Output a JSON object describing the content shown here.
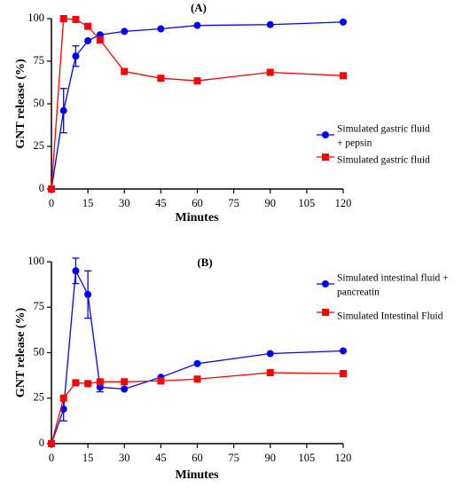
{
  "chart_data": [
    {
      "type": "line",
      "panel_label": "(A)",
      "xlabel": "Minutes",
      "ylabel": "GNT release (%)",
      "xlim": [
        0,
        120
      ],
      "ylim": [
        0,
        100
      ],
      "xticks": [
        0,
        15,
        30,
        45,
        60,
        75,
        90,
        105,
        120
      ],
      "yticks": [
        0,
        25,
        50,
        75,
        100
      ],
      "grid": false,
      "legend_position": "center-right",
      "series": [
        {
          "name": "Simulated gastric fluid + pepsin",
          "name_lines": [
            "Simulated gastric fluid",
            "+ pepsin"
          ],
          "color": "#0000ff",
          "marker": "circle",
          "x": [
            0,
            5,
            10,
            15,
            20,
            30,
            45,
            60,
            90,
            120
          ],
          "y": [
            0,
            46,
            78,
            87,
            90.5,
            92.5,
            94,
            96,
            96.5,
            98
          ],
          "error": [
            0,
            13,
            6,
            0,
            0,
            0,
            0,
            0,
            0,
            0
          ]
        },
        {
          "name": "Simulated gastric fluid",
          "name_lines": [
            "Simulated gastric fluid"
          ],
          "color": "#ff0000",
          "marker": "square",
          "x": [
            0,
            5,
            10,
            15,
            20,
            30,
            45,
            60,
            90,
            120
          ],
          "y": [
            0,
            100,
            99.5,
            95.5,
            87.5,
            69,
            65,
            63.5,
            68.5,
            66.5
          ],
          "error": [
            0,
            0,
            0,
            0,
            0,
            0,
            1.2,
            0,
            0,
            0
          ]
        }
      ]
    },
    {
      "type": "line",
      "panel_label": "(B)",
      "xlabel": "Minutes",
      "ylabel": "GNT release (%)",
      "xlim": [
        0,
        120
      ],
      "ylim": [
        0,
        100
      ],
      "xticks": [
        0,
        15,
        30,
        45,
        60,
        75,
        90,
        105,
        120
      ],
      "yticks": [
        0,
        25,
        50,
        75,
        100
      ],
      "grid": false,
      "legend_position": "top-right",
      "series": [
        {
          "name": "Simulated intestinal fluid + pancreatin",
          "name_lines": [
            "Simulated intestinal fluid +",
            "pancreatin"
          ],
          "color": "#0000ff",
          "marker": "circle",
          "x": [
            0,
            5,
            10,
            15,
            20,
            30,
            45,
            60,
            90,
            120
          ],
          "y": [
            0,
            19,
            95,
            82,
            31,
            30,
            36.5,
            44,
            49.5,
            51
          ],
          "error": [
            0,
            6.5,
            7,
            13,
            2.5,
            0,
            0,
            0,
            0,
            0
          ]
        },
        {
          "name": "Simulated Intestinal Fluid",
          "name_lines": [
            "Simulated Intestinal Fluid"
          ],
          "color": "#ff0000",
          "marker": "square",
          "x": [
            0,
            5,
            10,
            15,
            20,
            30,
            45,
            60,
            90,
            120
          ],
          "y": [
            0,
            25,
            33.5,
            33,
            34,
            34,
            34.5,
            35.5,
            39,
            38.5
          ],
          "error": [
            0,
            0,
            1,
            0,
            1,
            0,
            0,
            0,
            0,
            1.2
          ]
        }
      ]
    }
  ]
}
